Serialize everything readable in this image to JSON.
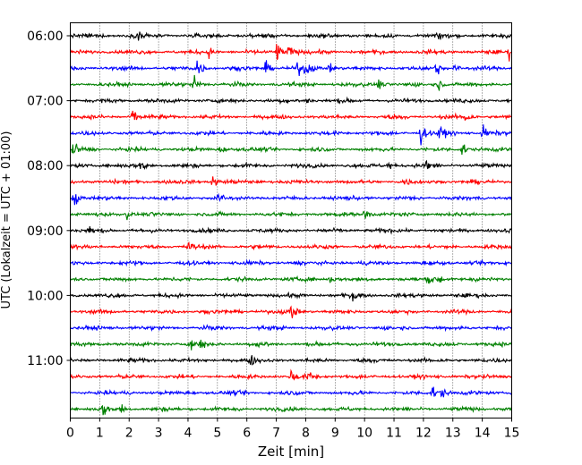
{
  "chart_data": {
    "type": "line",
    "title": "",
    "xlabel": "Zeit  [min]",
    "ylabel": "UTC (Lokalzeit = UTC + 01:00)",
    "xlim": [
      0,
      15
    ],
    "x_ticks": [
      0,
      1,
      2,
      3,
      4,
      5,
      6,
      7,
      8,
      9,
      10,
      11,
      12,
      13,
      14,
      15
    ],
    "x_tick_labels": [
      "0",
      "1",
      "2",
      "3",
      "4",
      "5",
      "6",
      "7",
      "8",
      "9",
      "10",
      "11",
      "12",
      "13",
      "14",
      "15"
    ],
    "y_ticks": [
      "06:00",
      "07:00",
      "08:00",
      "09:00",
      "10:00",
      "11:00"
    ],
    "trace_start": "06:00",
    "trace_duration_min": 15,
    "trace_start_times": [
      "06:00",
      "06:15",
      "06:30",
      "06:45",
      "07:00",
      "07:15",
      "07:30",
      "07:45",
      "08:00",
      "08:15",
      "08:30",
      "08:45",
      "09:00",
      "09:15",
      "09:30",
      "09:45",
      "10:00",
      "10:15",
      "10:30",
      "10:45",
      "11:00",
      "11:15",
      "11:30",
      "11:45"
    ],
    "trace_colors": [
      "#000000",
      "#ff0000",
      "#0000ff",
      "#008000"
    ],
    "grid": "vertical dotted at each minute",
    "legend": "none",
    "events": [
      {
        "trace": 0,
        "x": 2.3,
        "amp": 0.35
      },
      {
        "trace": 0,
        "x": 12.5,
        "amp": 0.25
      },
      {
        "trace": 1,
        "x": 4.7,
        "amp": 0.3
      },
      {
        "trace": 1,
        "x": 7.0,
        "amp": 0.75
      },
      {
        "trace": 1,
        "x": 7.4,
        "amp": 0.6
      },
      {
        "trace": 1,
        "x": 14.9,
        "amp": 0.4
      },
      {
        "trace": 2,
        "x": 4.3,
        "amp": 0.8
      },
      {
        "trace": 2,
        "x": 6.6,
        "amp": 0.5
      },
      {
        "trace": 2,
        "x": 7.7,
        "amp": 0.45
      },
      {
        "trace": 2,
        "x": 8.0,
        "amp": 0.55
      },
      {
        "trace": 2,
        "x": 8.8,
        "amp": 0.35
      },
      {
        "trace": 2,
        "x": 12.4,
        "amp": 0.55
      },
      {
        "trace": 2,
        "x": 13.0,
        "amp": 0.3
      },
      {
        "trace": 3,
        "x": 4.2,
        "amp": 0.7
      },
      {
        "trace": 3,
        "x": 10.4,
        "amp": 0.55
      },
      {
        "trace": 3,
        "x": 12.5,
        "amp": 0.4
      },
      {
        "trace": 4,
        "x": 8.0,
        "amp": 0.3
      },
      {
        "trace": 5,
        "x": 2.1,
        "amp": 0.6
      },
      {
        "trace": 5,
        "x": 13.4,
        "amp": 0.55
      },
      {
        "trace": 6,
        "x": 11.9,
        "amp": 0.8
      },
      {
        "trace": 6,
        "x": 12.5,
        "amp": 0.6
      },
      {
        "trace": 6,
        "x": 14.0,
        "amp": 0.55
      },
      {
        "trace": 7,
        "x": 0.1,
        "amp": 0.5
      },
      {
        "trace": 7,
        "x": 5.1,
        "amp": 0.3
      },
      {
        "trace": 7,
        "x": 13.3,
        "amp": 0.55
      },
      {
        "trace": 8,
        "x": 2.4,
        "amp": 0.55
      },
      {
        "trace": 8,
        "x": 10.8,
        "amp": 0.3
      },
      {
        "trace": 8,
        "x": 12.1,
        "amp": 0.5
      },
      {
        "trace": 9,
        "x": 4.8,
        "amp": 0.55
      },
      {
        "trace": 9,
        "x": 11.3,
        "amp": 0.3
      },
      {
        "trace": 10,
        "x": 0.1,
        "amp": 0.7
      },
      {
        "trace": 10,
        "x": 4.9,
        "amp": 0.55
      },
      {
        "trace": 11,
        "x": 1.9,
        "amp": 0.3
      },
      {
        "trace": 11,
        "x": 10.0,
        "amp": 0.6
      },
      {
        "trace": 12,
        "x": 0.6,
        "amp": 0.25
      },
      {
        "trace": 13,
        "x": 4.0,
        "amp": 0.35
      },
      {
        "trace": 15,
        "x": 8.8,
        "amp": 0.35
      },
      {
        "trace": 15,
        "x": 12.2,
        "amp": 0.35
      },
      {
        "trace": 15,
        "x": 12.5,
        "amp": 0.35
      },
      {
        "trace": 16,
        "x": 9.6,
        "amp": 0.3
      },
      {
        "trace": 17,
        "x": 7.5,
        "amp": 0.6
      },
      {
        "trace": 19,
        "x": 4.1,
        "amp": 0.4
      },
      {
        "trace": 19,
        "x": 4.4,
        "amp": 0.35
      },
      {
        "trace": 19,
        "x": 6.4,
        "amp": 0.35
      },
      {
        "trace": 19,
        "x": 9.5,
        "amp": 0.3
      },
      {
        "trace": 20,
        "x": 6.1,
        "amp": 0.35
      },
      {
        "trace": 21,
        "x": 7.5,
        "amp": 0.45
      },
      {
        "trace": 21,
        "x": 8.1,
        "amp": 0.3
      },
      {
        "trace": 22,
        "x": 12.3,
        "amp": 0.45
      },
      {
        "trace": 22,
        "x": 12.6,
        "amp": 0.4
      },
      {
        "trace": 23,
        "x": 1.1,
        "amp": 0.45
      },
      {
        "trace": 23,
        "x": 1.7,
        "amp": 0.4
      }
    ]
  }
}
